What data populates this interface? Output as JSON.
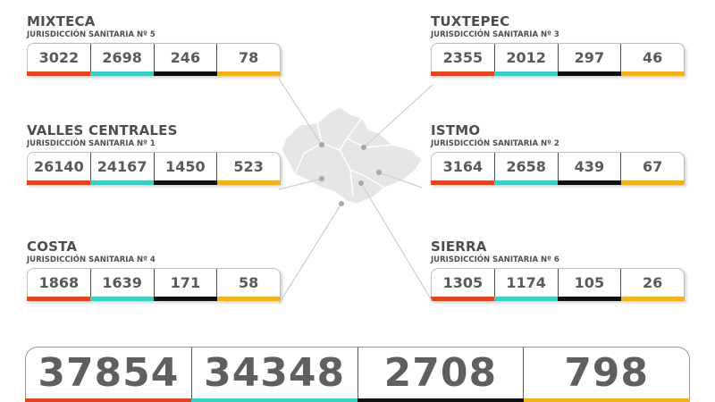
{
  "regions": {
    "mixteca": {
      "name": "MIXTECA",
      "sub": "JURISDICCIÓN SANITARIA Nº 5",
      "values": [
        "3022",
        "2698",
        "246",
        "78"
      ]
    },
    "tuxtepec": {
      "name": "TUXTEPEC",
      "sub": "JURISDICCIÓN SANITARIA Nº 3",
      "values": [
        "2355",
        "2012",
        "297",
        "46"
      ]
    },
    "valles": {
      "name": "VALLES CENTRALES",
      "sub": "JURISDICCIÓN SANITARIA Nº 1",
      "values": [
        "26140",
        "24167",
        "1450",
        "523"
      ]
    },
    "istmo": {
      "name": "ISTMO",
      "sub": "JURISDICCIÓN SANITARIA Nº 2",
      "values": [
        "3164",
        "2658",
        "439",
        "67"
      ]
    },
    "costa": {
      "name": "COSTA",
      "sub": "JURISDICCIÓN SANITARIA Nº 4",
      "values": [
        "1868",
        "1639",
        "171",
        "58"
      ]
    },
    "sierra": {
      "name": "SIERRA",
      "sub": "JURISDICCIÓN SANITARIA Nº 6",
      "values": [
        "1305",
        "1174",
        "105",
        "26"
      ]
    }
  },
  "totals": [
    "37854",
    "34348",
    "2708",
    "798"
  ],
  "colors": {
    "col1": "#e0461f",
    "col2": "#3ccfc1",
    "col3": "#111111",
    "col4": "#f2b21d",
    "map_fill": "#e6e6e6",
    "map_lines": "#a8a8a8"
  }
}
